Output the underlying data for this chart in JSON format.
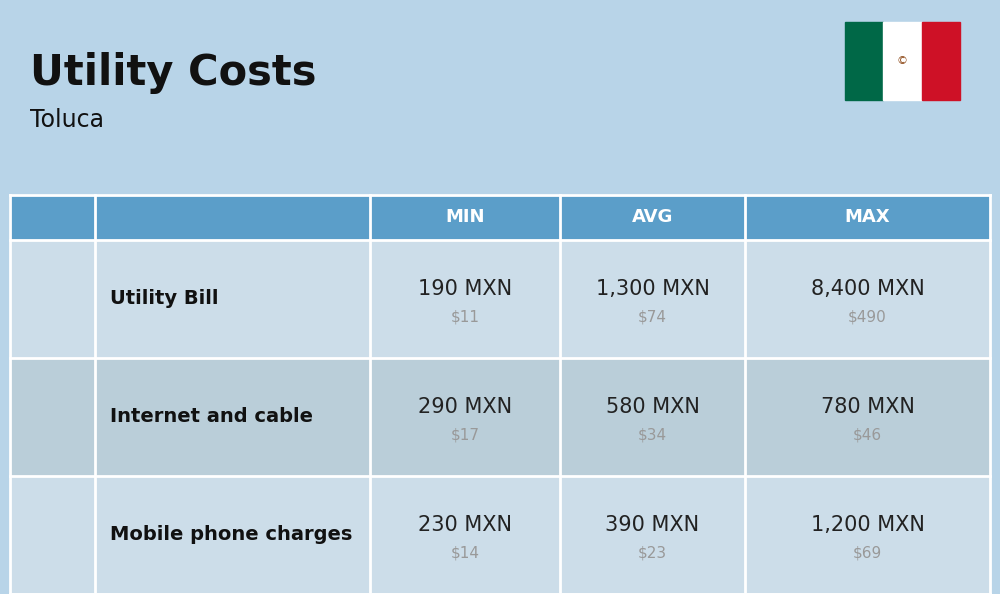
{
  "title": "Utility Costs",
  "subtitle": "Toluca",
  "background_color": "#b8d4e8",
  "header_color": "#5b9ec9",
  "header_text_color": "#ffffff",
  "row_colors": [
    "#ccdde9",
    "#baced9"
  ],
  "col_header": [
    "",
    "",
    "MIN",
    "AVG",
    "MAX"
  ],
  "rows": [
    {
      "label": "Utility Bill",
      "min_mxn": "190 MXN",
      "min_usd": "$11",
      "avg_mxn": "1,300 MXN",
      "avg_usd": "$74",
      "max_mxn": "8,400 MXN",
      "max_usd": "$490"
    },
    {
      "label": "Internet and cable",
      "min_mxn": "290 MXN",
      "min_usd": "$17",
      "avg_mxn": "580 MXN",
      "avg_usd": "$34",
      "max_mxn": "780 MXN",
      "max_usd": "$46"
    },
    {
      "label": "Mobile phone charges",
      "min_mxn": "230 MXN",
      "min_usd": "$14",
      "avg_mxn": "390 MXN",
      "avg_usd": "$23",
      "max_mxn": "1,200 MXN",
      "max_usd": "$69"
    }
  ],
  "title_fontsize": 30,
  "subtitle_fontsize": 17,
  "header_fontsize": 13,
  "cell_fontsize": 15,
  "usd_fontsize": 11,
  "label_fontsize": 14,
  "usd_color": "#999999",
  "cell_text_color": "#222222",
  "label_text_color": "#111111",
  "flag_green": "#006847",
  "flag_white": "#ffffff",
  "flag_red": "#CE1126"
}
